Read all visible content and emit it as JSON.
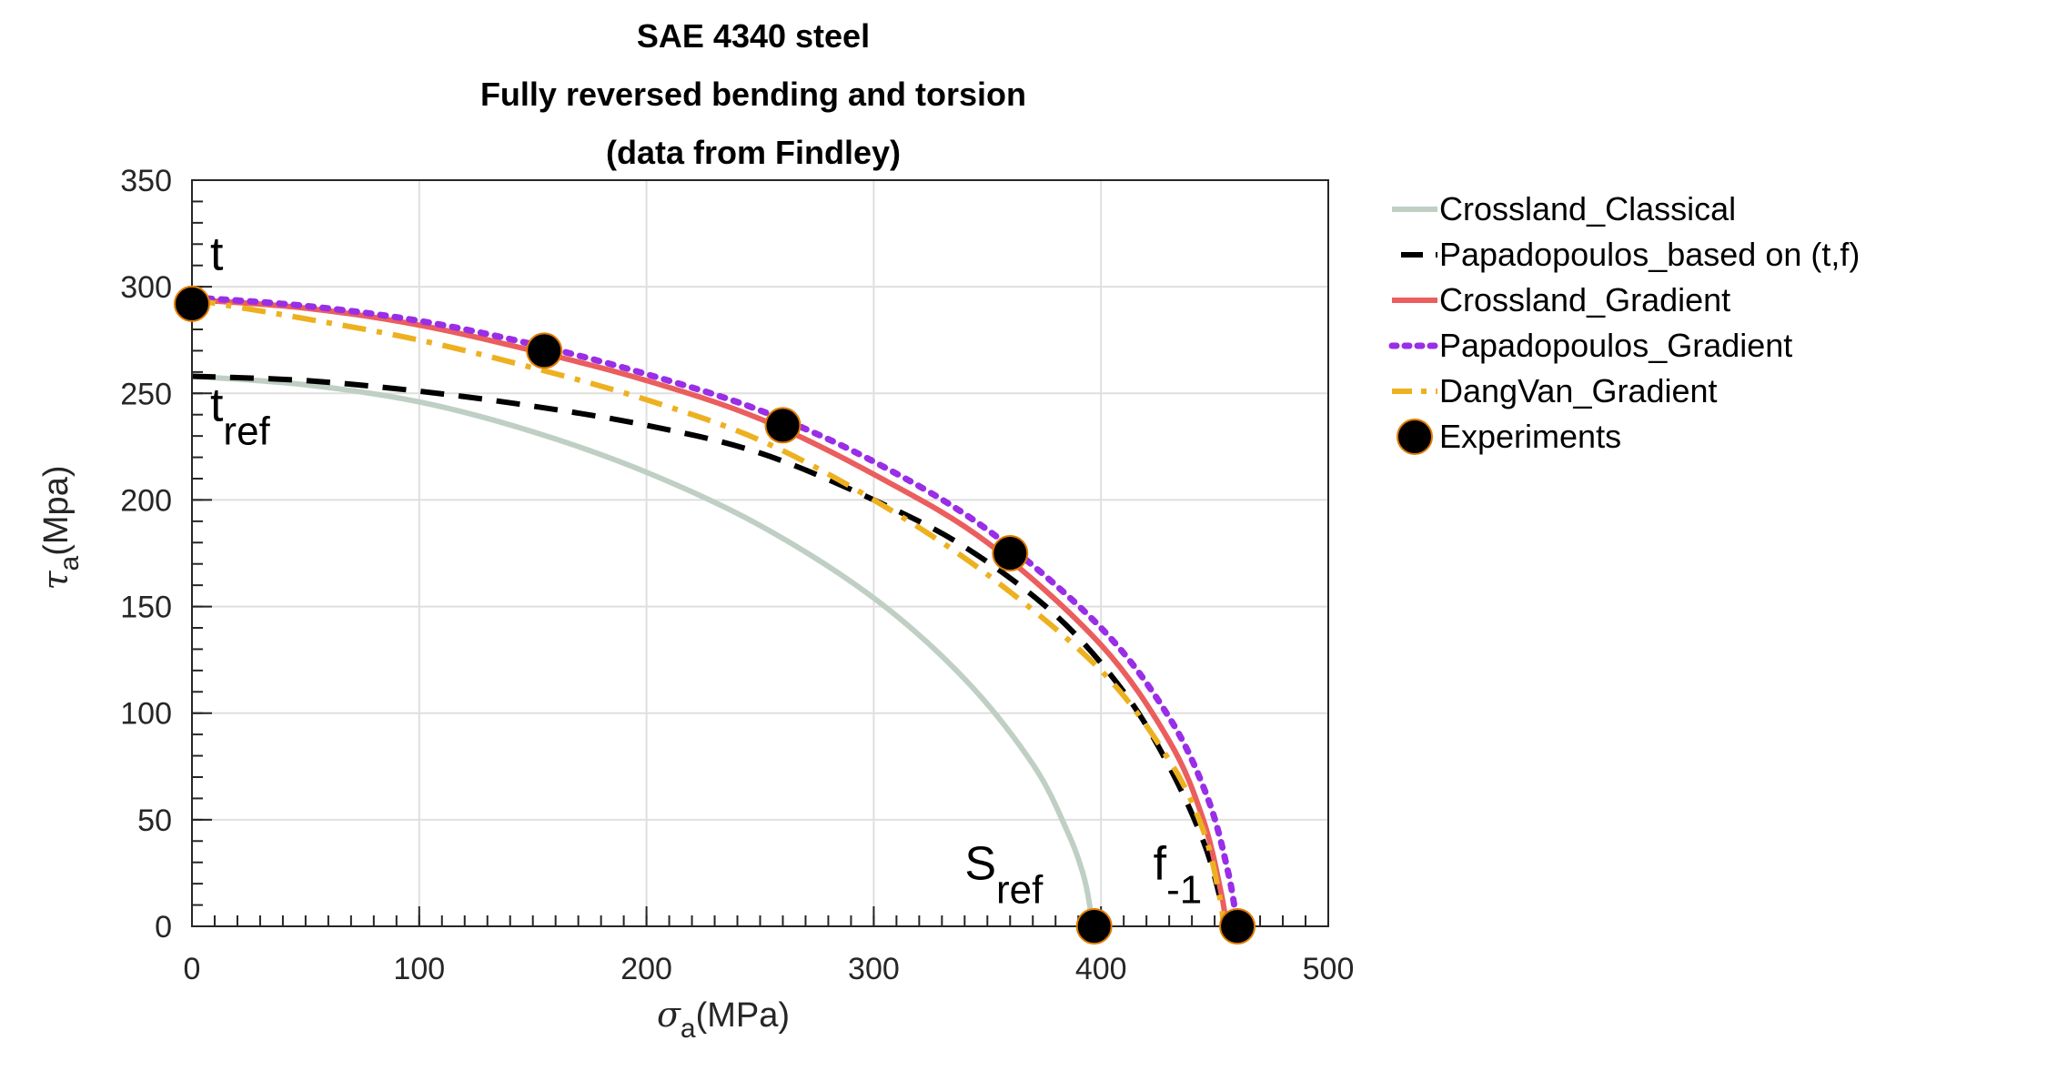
{
  "chart_data": {
    "type": "line",
    "title": [
      "SAE 4340 steel",
      "Fully reversed bending and torsion",
      "(data from Findley)"
    ],
    "xlabel": {
      "symbol": "σ",
      "sub": "a",
      "rest": "(MPa)"
    },
    "ylabel": {
      "symbol": "τ",
      "sub": "a",
      "rest": "(Mpa)"
    },
    "xlim": [
      0,
      500
    ],
    "ylim": [
      0,
      350
    ],
    "xticks": [
      0,
      100,
      200,
      300,
      400,
      500
    ],
    "yticks": [
      0,
      50,
      100,
      150,
      200,
      250,
      300,
      350
    ],
    "grid": true,
    "legend_position": "outside-right",
    "series": [
      {
        "name": "Crossland_Classical",
        "kind": "curve",
        "color": "#bfcfc4",
        "dash": "solid",
        "x": [
          0,
          50,
          100,
          150,
          200,
          250,
          300,
          340,
          370,
          385,
          392,
          395,
          396
        ],
        "y": [
          258,
          254,
          246,
          232,
          213,
          188,
          154,
          116,
          76,
          45,
          25,
          10,
          0
        ]
      },
      {
        "name": "Papadopoulos_based on (t,f)",
        "kind": "curve",
        "color": "#000000",
        "dash": "dashed",
        "x": [
          0,
          50,
          100,
          150,
          200,
          250,
          300,
          340,
          380,
          410,
          430,
          445,
          452,
          455
        ],
        "y": [
          258,
          256,
          251,
          244,
          235,
          222,
          200,
          178,
          146,
          110,
          75,
          40,
          15,
          0
        ]
      },
      {
        "name": "Crossland_Gradient",
        "kind": "curve",
        "color": "#eb5e5e",
        "dash": "solid",
        "x": [
          0,
          50,
          100,
          150,
          200,
          250,
          300,
          350,
          400,
          430,
          445,
          453,
          455
        ],
        "y": [
          294,
          290,
          282,
          270,
          256,
          238,
          212,
          180,
          132,
          87,
          50,
          15,
          0
        ]
      },
      {
        "name": "Papadopoulos_Gradient",
        "kind": "curve",
        "color": "#9a2ee6",
        "dash": "dotted",
        "x": [
          0,
          50,
          100,
          150,
          200,
          250,
          300,
          350,
          400,
          430,
          447,
          456,
          460
        ],
        "y": [
          295,
          291,
          284,
          273,
          259,
          242,
          218,
          186,
          140,
          98,
          60,
          25,
          0
        ]
      },
      {
        "name": "DangVan_Gradient",
        "kind": "curve",
        "color": "#edb120",
        "dash": "dashdot",
        "x": [
          0,
          50,
          100,
          150,
          200,
          250,
          300,
          350,
          400,
          430,
          445,
          452,
          454
        ],
        "y": [
          294,
          285,
          275,
          262,
          247,
          228,
          200,
          165,
          120,
          78,
          45,
          15,
          0
        ]
      },
      {
        "name": "Experiments",
        "kind": "markers",
        "color": "#000000",
        "edge": "#e07b00",
        "x": [
          0,
          155,
          260,
          360,
          397,
          460
        ],
        "y": [
          292,
          270,
          235,
          175,
          0,
          0
        ]
      }
    ],
    "annotations": [
      {
        "text": "t",
        "sub": "",
        "x": 8,
        "y": 308
      },
      {
        "text": "t",
        "sub": "ref",
        "x": 8,
        "y": 237
      },
      {
        "text": "S",
        "sub": "ref",
        "x": 340,
        "y": 22
      },
      {
        "text": "f",
        "sub": "-1",
        "x": 423,
        "y": 22
      }
    ]
  }
}
